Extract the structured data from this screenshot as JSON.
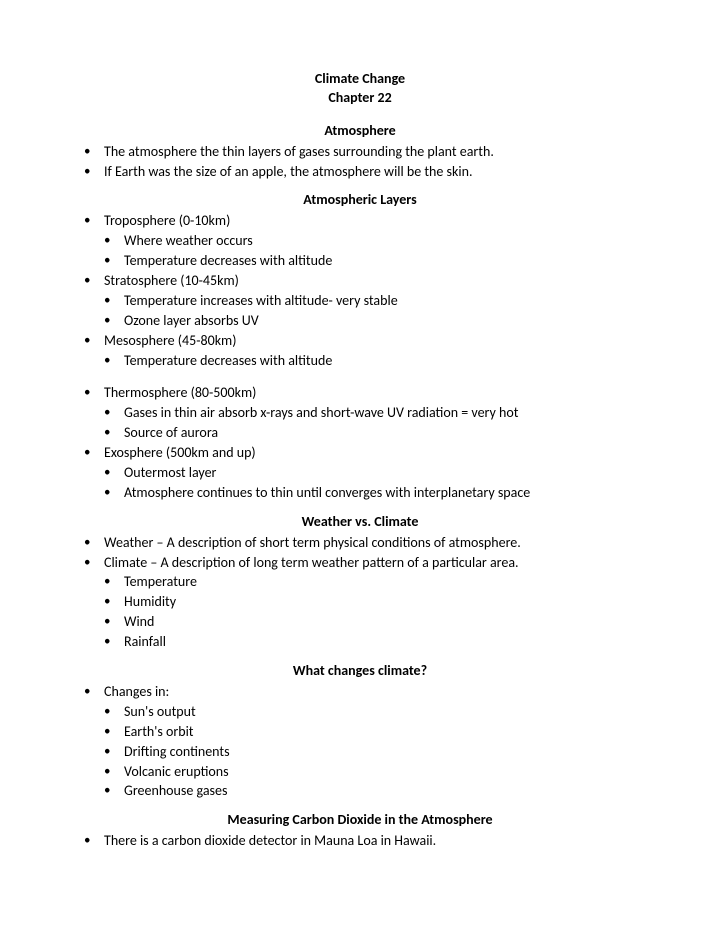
{
  "doc": {
    "title": "Climate Change",
    "subtitle": "Chapter 22",
    "text_color": "#000000",
    "background_color": "#ffffff",
    "font_family": "Calibri",
    "base_font_size_pt": 11,
    "sections": {
      "atmosphere": {
        "heading": "Atmosphere",
        "items": [
          "The atmosphere the thin layers of gases surrounding the plant earth.",
          "If Earth was the size of an apple, the atmosphere will be the skin."
        ]
      },
      "layers": {
        "heading": "Atmospheric Layers",
        "items": [
          {
            "text": "Troposphere (0-10km)",
            "sub": [
              "Where weather occurs",
              "Temperature decreases with altitude"
            ]
          },
          {
            "text": "Stratosphere (10-45km)",
            "sub": [
              "Temperature increases with altitude- very stable",
              "Ozone layer absorbs UV"
            ]
          },
          {
            "text": "Mesosphere (45-80km)",
            "sub": [
              "Temperature decreases with altitude"
            ]
          },
          {
            "text": "Thermosphere (80-500km)",
            "gap_before": true,
            "sub": [
              "Gases in thin air absorb x-rays and short-wave UV radiation = very hot",
              "Source of aurora"
            ]
          },
          {
            "text": "Exosphere (500km and up)",
            "sub": [
              "Outermost layer",
              "Atmosphere continues to thin until converges with interplanetary space"
            ]
          }
        ]
      },
      "weather_climate": {
        "heading": "Weather vs. Climate",
        "items": [
          {
            "text": "Weather – A  description of short term physical conditions of atmosphere."
          },
          {
            "text": "Climate – A description of long term weather pattern of a particular area.",
            "sub": [
              "Temperature",
              "Humidity",
              "Wind",
              "Rainfall"
            ]
          }
        ]
      },
      "what_changes": {
        "heading": "What changes climate?",
        "items": [
          {
            "text": "Changes in:",
            "sub": [
              "Sun's output",
              "Earth's orbit",
              "Drifting continents",
              "Volcanic eruptions",
              "Greenhouse gases"
            ]
          }
        ]
      },
      "measuring": {
        "heading": "Measuring Carbon Dioxide in the Atmosphere",
        "items": [
          "There is a carbon dioxide detector in  Mauna Loa in Hawaii."
        ]
      }
    }
  }
}
